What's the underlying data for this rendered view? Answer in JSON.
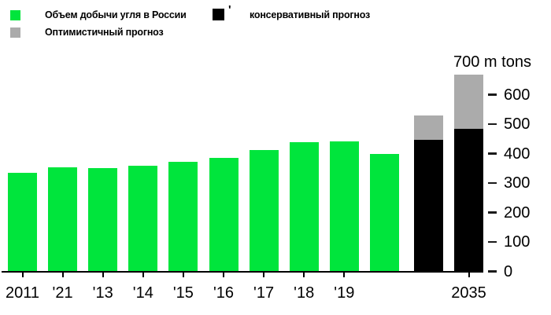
{
  "legend": {
    "production": {
      "label": "Объем добычи угля в России",
      "color": "#00E53C"
    },
    "conservative": {
      "label": "консервативный прогноз",
      "color": "#000000",
      "tick_mark": "'"
    },
    "optimistic": {
      "label": "Оптимистичный прогноз",
      "color": "#ABABAB"
    }
  },
  "chart_data": {
    "type": "bar",
    "title": "",
    "ylabel": "700 m tons",
    "unit": "m tons",
    "ylim": [
      0,
      700
    ],
    "y_ticks": [
      0,
      100,
      200,
      300,
      400,
      500,
      600
    ],
    "grid": false,
    "legend_position": "top",
    "series_names": [
      "Объем добычи угля в России",
      "консервативный прогноз",
      "Оптимистичный прогноз"
    ],
    "bars": [
      {
        "label": "2011",
        "production": 336
      },
      {
        "label": "'21",
        "production": 354
      },
      {
        "label": "'13",
        "production": 352
      },
      {
        "label": "'14",
        "production": 358
      },
      {
        "label": "'15",
        "production": 373
      },
      {
        "label": "'16",
        "production": 386
      },
      {
        "label": "'17",
        "production": 411
      },
      {
        "label": "'18",
        "production": 439
      },
      {
        "label": "'19",
        "production": 441
      },
      {
        "label": "",
        "production": 398
      },
      {
        "label": "",
        "conservative": 448,
        "optimistic": 530
      },
      {
        "label": "2035",
        "conservative": 485,
        "optimistic": 668
      }
    ]
  }
}
